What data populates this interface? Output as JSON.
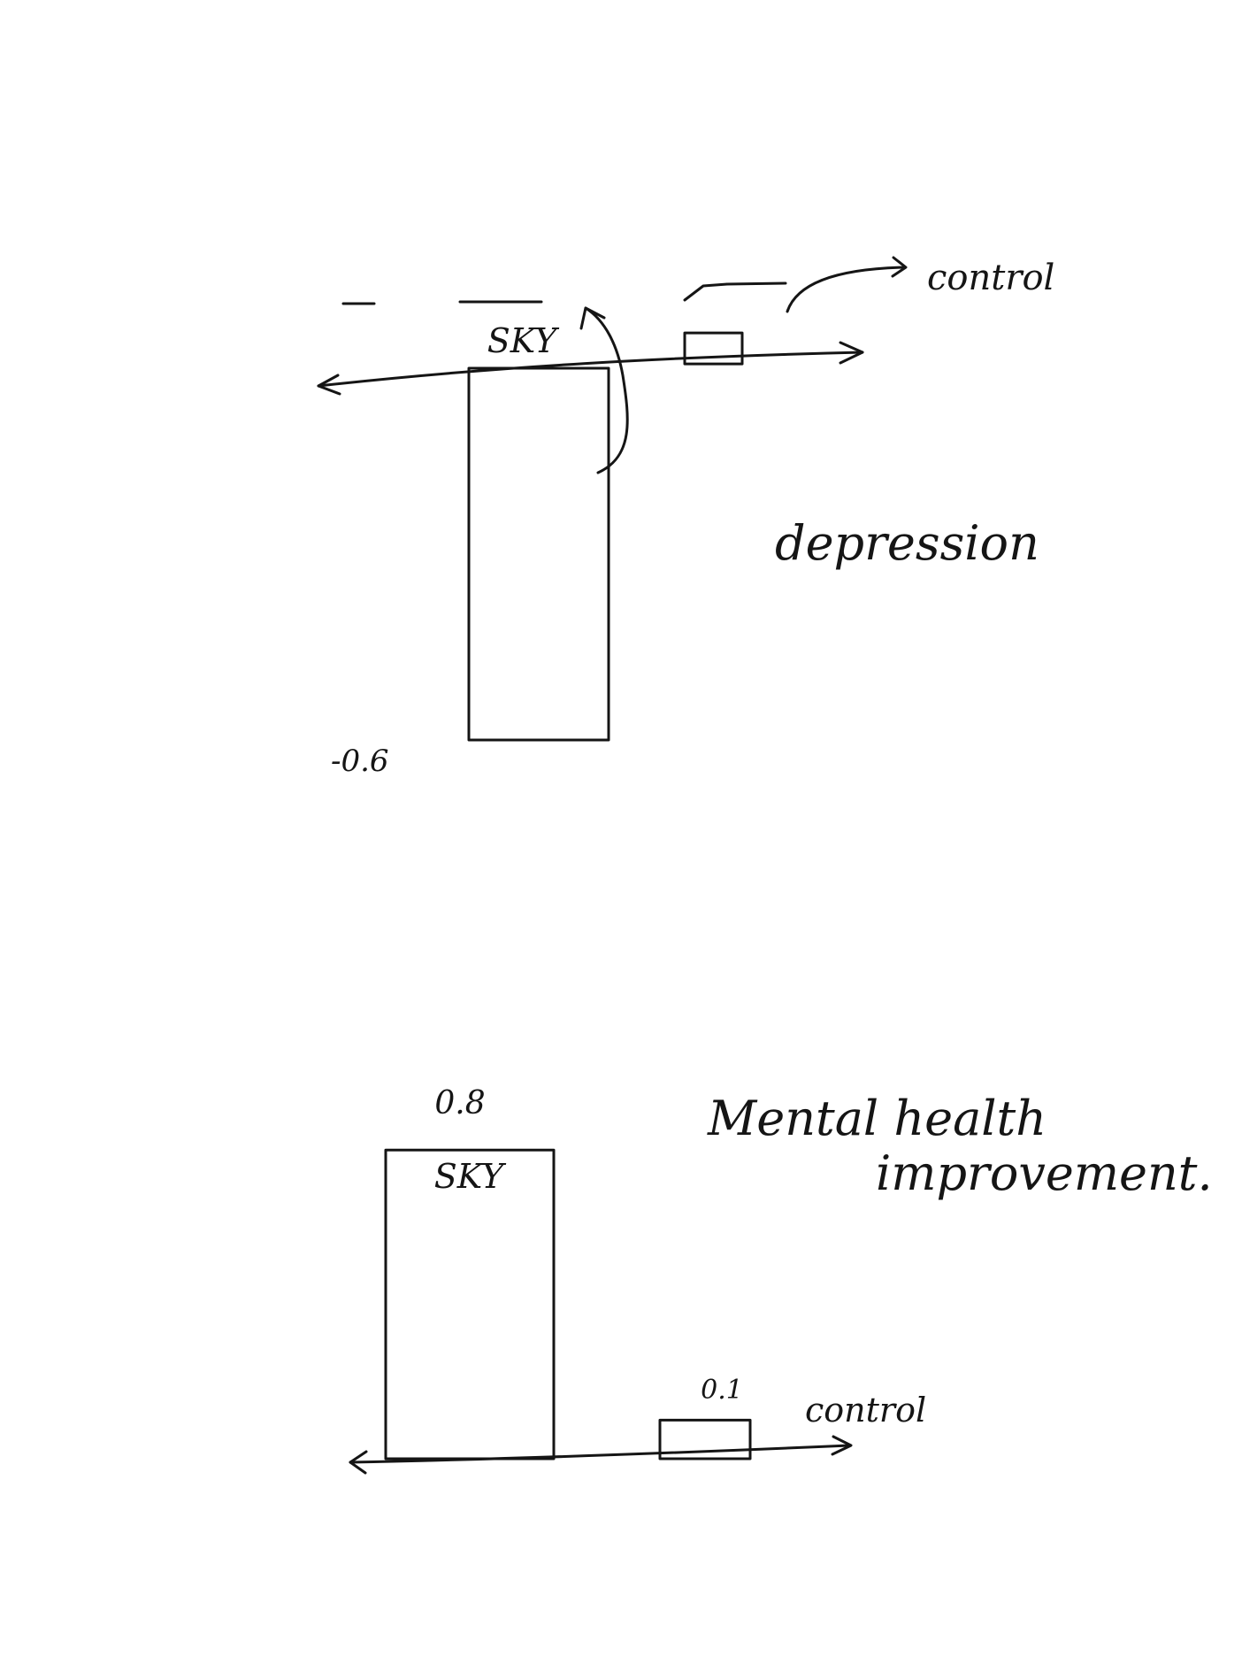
{
  "chart_data": [
    {
      "type": "bar",
      "title": "depression",
      "categories": [
        "SKY",
        "control"
      ],
      "values": [
        -0.6,
        0.05
      ],
      "data_labels": [
        "-0.6",
        ""
      ],
      "annotation": "control"
    },
    {
      "type": "bar",
      "title": "Mental health improvement.",
      "categories": [
        "SKY",
        "control"
      ],
      "values": [
        0.8,
        0.1
      ],
      "data_labels": [
        "0.8",
        "0.1"
      ]
    }
  ],
  "colors": {
    "ink": "#151515",
    "paper": "#ffffff"
  }
}
